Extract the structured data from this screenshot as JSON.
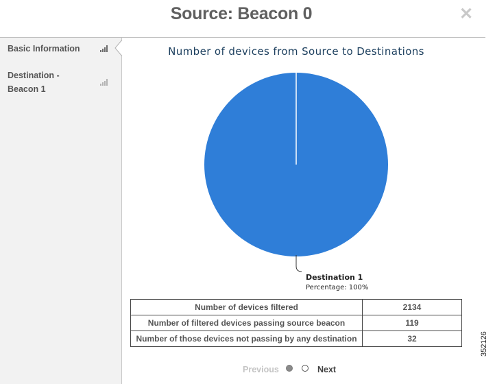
{
  "dialog": {
    "title": "Source: Beacon 0",
    "close_icon": "close-icon"
  },
  "sidebar": {
    "items": [
      {
        "label": "Basic Information",
        "icon": "signal-bars-icon",
        "active": true
      },
      {
        "label": "Destination - Beacon 1",
        "icon": "signal-bars-icon",
        "active": false
      }
    ]
  },
  "chart_data": {
    "type": "pie",
    "title": "Number of devices from Source to Destinations",
    "slices": [
      {
        "name": "Destination 1",
        "value": 100,
        "label_detail": "Percentage: 100%",
        "color": "#2f7ed8"
      }
    ]
  },
  "stats": {
    "rows": [
      {
        "label": "Number of devices filtered",
        "value": "2134"
      },
      {
        "label": "Number of filtered devices passing source beacon",
        "value": "119"
      },
      {
        "label": "Number of those devices not passing by any destination",
        "value": "32"
      }
    ]
  },
  "pager": {
    "previous_label": "Previous",
    "next_label": "Next",
    "pages": 2,
    "current_page": 1
  },
  "figure_id": "352126"
}
